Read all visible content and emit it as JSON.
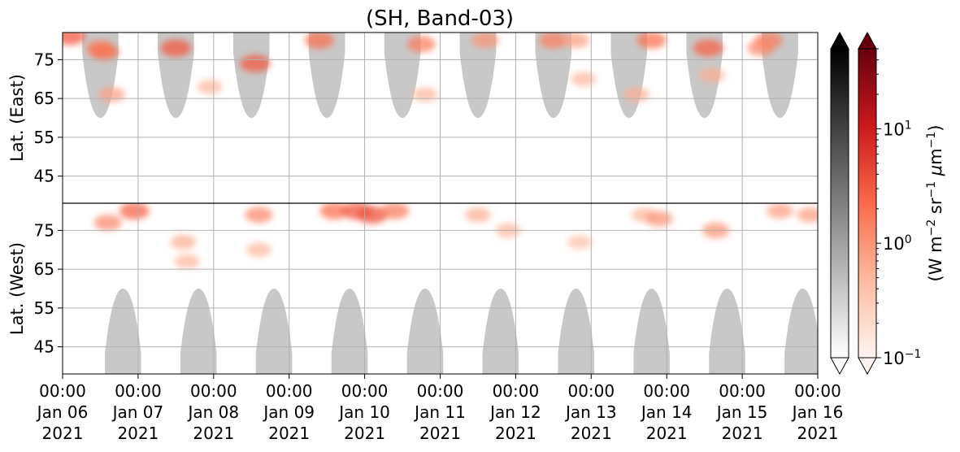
{
  "chart_data": {
    "type": "heatmap",
    "title": "(SH, Band-03)",
    "xlabel": "",
    "x_range": [
      "2021-01-06T00:00",
      "2021-01-16T00:00"
    ],
    "x_ticks": [
      {
        "time": "00:00",
        "date": "Jan 06",
        "year": "2021"
      },
      {
        "time": "00:00",
        "date": "Jan 07",
        "year": "2021"
      },
      {
        "time": "00:00",
        "date": "Jan 08",
        "year": "2021"
      },
      {
        "time": "00:00",
        "date": "Jan 09",
        "year": "2021"
      },
      {
        "time": "00:00",
        "date": "Jan 10",
        "year": "2021"
      },
      {
        "time": "00:00",
        "date": "Jan 11",
        "year": "2021"
      },
      {
        "time": "00:00",
        "date": "Jan 12",
        "year": "2021"
      },
      {
        "time": "00:00",
        "date": "Jan 13",
        "year": "2021"
      },
      {
        "time": "00:00",
        "date": "Jan 14",
        "year": "2021"
      },
      {
        "time": "00:00",
        "date": "Jan 15",
        "year": "2021"
      },
      {
        "time": "00:00",
        "date": "Jan 16",
        "year": "2021"
      }
    ],
    "y_panels": [
      {
        "label": "Lat. (East)",
        "ticks": [
          "45",
          "55",
          "65",
          "75"
        ],
        "range": [
          38,
          82
        ]
      },
      {
        "label": "Lat. (West)",
        "ticks": [
          "75",
          "65",
          "55",
          "45"
        ],
        "range": [
          82,
          38
        ]
      }
    ],
    "grid": true,
    "colorbars": [
      {
        "name": "grey",
        "colors": [
          "#ffffff",
          "#000000"
        ],
        "extend": "both"
      },
      {
        "name": "reds",
        "colors": [
          "#fff5f0",
          "#67000d"
        ],
        "extend": "both",
        "scale": "log",
        "range": [
          0.1,
          50
        ],
        "ticks": [
          {
            "base": "10",
            "exp": "1"
          },
          {
            "base": "10",
            "exp": "0"
          },
          {
            "base": "10",
            "exp": "−1"
          }
        ],
        "label_parts": [
          "(W m",
          "−2",
          " sr",
          "−1",
          " ",
          "μ",
          "m",
          "−1",
          ")"
        ]
      }
    ],
    "grey_lobes": {
      "east_days": [
        0.5,
        1.5,
        2.5,
        3.5,
        4.5,
        5.5,
        6.5,
        7.5,
        8.5,
        9.5
      ],
      "west_days": [
        0.8,
        1.8,
        2.8,
        3.8,
        4.8,
        5.8,
        6.8,
        7.8,
        8.8,
        9.8
      ],
      "edge_lat": 60,
      "color": "#c8c8c8"
    },
    "intensity_blobs": [
      {
        "day": 0.1,
        "lat": 81,
        "hemi": "east",
        "value": 3
      },
      {
        "day": 0.5,
        "lat": 78,
        "hemi": "east",
        "value": 1.5
      },
      {
        "day": 0.6,
        "lat": 77,
        "hemi": "west",
        "value": 1.2
      },
      {
        "day": 0.55,
        "lat": 77,
        "hemi": "east",
        "value": 2
      },
      {
        "day": 0.65,
        "lat": 66,
        "hemi": "east",
        "value": 0.8
      },
      {
        "day": 0.95,
        "lat": 80,
        "hemi": "west",
        "value": 2.5
      },
      {
        "day": 1.5,
        "lat": 78,
        "hemi": "east",
        "value": 3
      },
      {
        "day": 1.6,
        "lat": 72,
        "hemi": "west",
        "value": 0.6
      },
      {
        "day": 1.65,
        "lat": 67,
        "hemi": "west",
        "value": 0.5
      },
      {
        "day": 1.95,
        "lat": 68,
        "hemi": "east",
        "value": 0.5
      },
      {
        "day": 2.55,
        "lat": 74,
        "hemi": "east",
        "value": 3
      },
      {
        "day": 2.6,
        "lat": 79,
        "hemi": "west",
        "value": 1.2
      },
      {
        "day": 2.6,
        "lat": 70,
        "hemi": "west",
        "value": 0.5
      },
      {
        "day": 3.4,
        "lat": 80,
        "hemi": "east",
        "value": 2
      },
      {
        "day": 3.6,
        "lat": 80,
        "hemi": "west",
        "value": 2
      },
      {
        "day": 3.9,
        "lat": 80,
        "hemi": "west",
        "value": 3
      },
      {
        "day": 4.1,
        "lat": 79,
        "hemi": "west",
        "value": 3.5
      },
      {
        "day": 4.4,
        "lat": 80,
        "hemi": "west",
        "value": 1.5
      },
      {
        "day": 4.75,
        "lat": 79,
        "hemi": "east",
        "value": 1.5
      },
      {
        "day": 4.8,
        "lat": 66,
        "hemi": "east",
        "value": 0.5
      },
      {
        "day": 5.6,
        "lat": 80,
        "hemi": "east",
        "value": 1
      },
      {
        "day": 5.5,
        "lat": 79,
        "hemi": "west",
        "value": 0.6
      },
      {
        "day": 5.9,
        "lat": 75,
        "hemi": "west",
        "value": 0.5
      },
      {
        "day": 6.5,
        "lat": 80,
        "hemi": "east",
        "value": 1.5
      },
      {
        "day": 6.8,
        "lat": 80,
        "hemi": "east",
        "value": 0.8
      },
      {
        "day": 6.85,
        "lat": 72,
        "hemi": "west",
        "value": 0.4
      },
      {
        "day": 6.9,
        "lat": 70,
        "hemi": "east",
        "value": 0.5
      },
      {
        "day": 7.6,
        "lat": 66,
        "hemi": "east",
        "value": 0.6
      },
      {
        "day": 7.7,
        "lat": 79,
        "hemi": "west",
        "value": 0.5
      },
      {
        "day": 7.8,
        "lat": 80,
        "hemi": "east",
        "value": 2
      },
      {
        "day": 7.9,
        "lat": 78,
        "hemi": "west",
        "value": 1
      },
      {
        "day": 8.55,
        "lat": 78,
        "hemi": "east",
        "value": 2.5
      },
      {
        "day": 8.6,
        "lat": 71,
        "hemi": "east",
        "value": 0.6
      },
      {
        "day": 8.65,
        "lat": 75,
        "hemi": "west",
        "value": 1
      },
      {
        "day": 9.25,
        "lat": 78,
        "hemi": "east",
        "value": 1.2
      },
      {
        "day": 9.35,
        "lat": 80,
        "hemi": "east",
        "value": 1.5
      },
      {
        "day": 9.5,
        "lat": 80,
        "hemi": "west",
        "value": 0.8
      },
      {
        "day": 9.9,
        "lat": 79,
        "hemi": "west",
        "value": 0.8
      }
    ]
  }
}
